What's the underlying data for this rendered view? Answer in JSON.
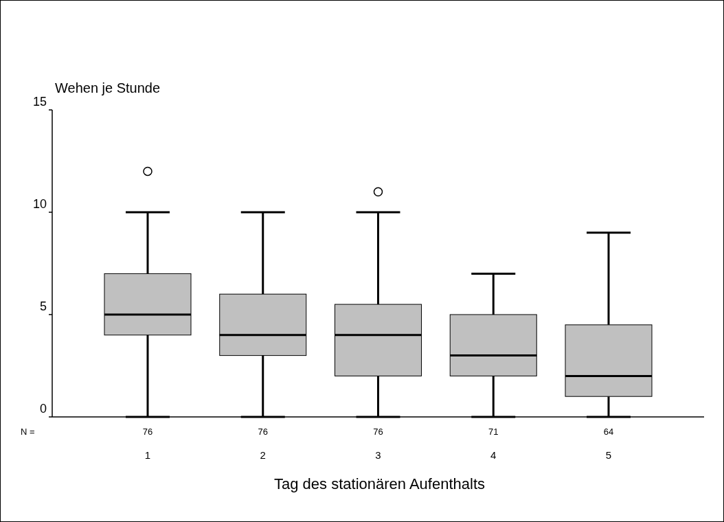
{
  "chart_data": {
    "type": "box",
    "ylabel": "Wehen je Stunde",
    "xlabel": "Tag des stationären Aufenthalts",
    "categories": [
      "1",
      "2",
      "3",
      "4",
      "5"
    ],
    "ylim": [
      0,
      15
    ],
    "yticks": [
      0,
      5,
      10,
      15
    ],
    "grid": false,
    "color": "#c0c0c0",
    "boxes": [
      {
        "low": 0,
        "q1": 4,
        "median": 5,
        "q3": 7,
        "high": 10,
        "outliers": [
          12
        ]
      },
      {
        "low": 0,
        "q1": 3,
        "median": 4,
        "q3": 6,
        "high": 10
      },
      {
        "low": 0,
        "q1": 2,
        "median": 4,
        "q3": 5.5,
        "high": 10,
        "outliers": [
          11
        ]
      },
      {
        "low": 0,
        "q1": 2,
        "median": 3,
        "q3": 5,
        "high": 7
      },
      {
        "low": 0,
        "q1": 1,
        "median": 2,
        "q3": 4.5,
        "high": 9
      }
    ],
    "annotations": [
      "N =",
      "76",
      "76",
      "76",
      "71",
      "64"
    ]
  }
}
